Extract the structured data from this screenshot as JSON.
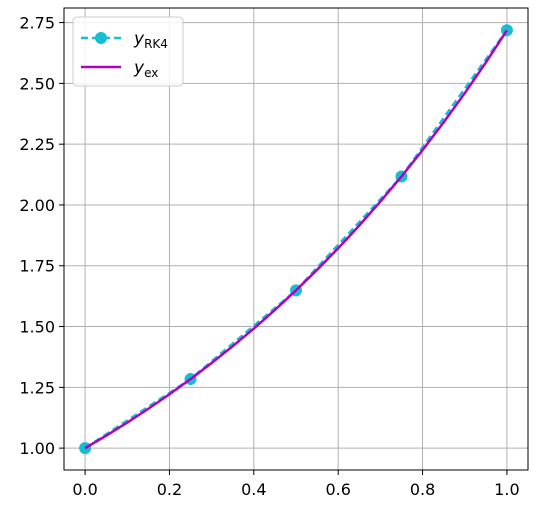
{
  "chart_data": {
    "type": "line",
    "title": "",
    "xlabel": "",
    "ylabel": "",
    "xlim": [
      -0.05,
      1.05
    ],
    "ylim": [
      0.91,
      2.81
    ],
    "xticks": [
      0.0,
      0.2,
      0.4,
      0.6,
      0.8,
      1.0
    ],
    "xtick_labels": [
      "0.0",
      "0.2",
      "0.4",
      "0.6",
      "0.8",
      "1.0"
    ],
    "yticks": [
      1.0,
      1.25,
      1.5,
      1.75,
      2.0,
      2.25,
      2.5,
      2.75
    ],
    "ytick_labels": [
      "1.00",
      "1.25",
      "1.50",
      "1.75",
      "2.00",
      "2.25",
      "2.50",
      "2.75"
    ],
    "grid": true,
    "legend_position": "top-left",
    "series": [
      {
        "name_main": "y",
        "name_sub": "RK4",
        "style": "dashed-markers",
        "color": "#17becf",
        "x": [
          0.0,
          0.25,
          0.5,
          0.75,
          1.0
        ],
        "y": [
          1.0,
          1.284,
          1.6487,
          2.117,
          2.7183
        ]
      },
      {
        "name_main": "y",
        "name_sub": "ex",
        "style": "solid",
        "color": "#b000c0",
        "x": [
          0.0,
          0.05,
          0.1,
          0.15,
          0.2,
          0.25,
          0.3,
          0.35,
          0.4,
          0.45,
          0.5,
          0.55,
          0.6,
          0.65,
          0.7,
          0.75,
          0.8,
          0.85,
          0.9,
          0.95,
          1.0
        ],
        "y": [
          1.0,
          1.0513,
          1.1052,
          1.1618,
          1.2214,
          1.284,
          1.3499,
          1.4191,
          1.4918,
          1.5683,
          1.6487,
          1.7333,
          1.8221,
          1.9155,
          2.0138,
          2.117,
          2.2255,
          2.3396,
          2.4596,
          2.5857,
          2.7183
        ]
      }
    ]
  }
}
